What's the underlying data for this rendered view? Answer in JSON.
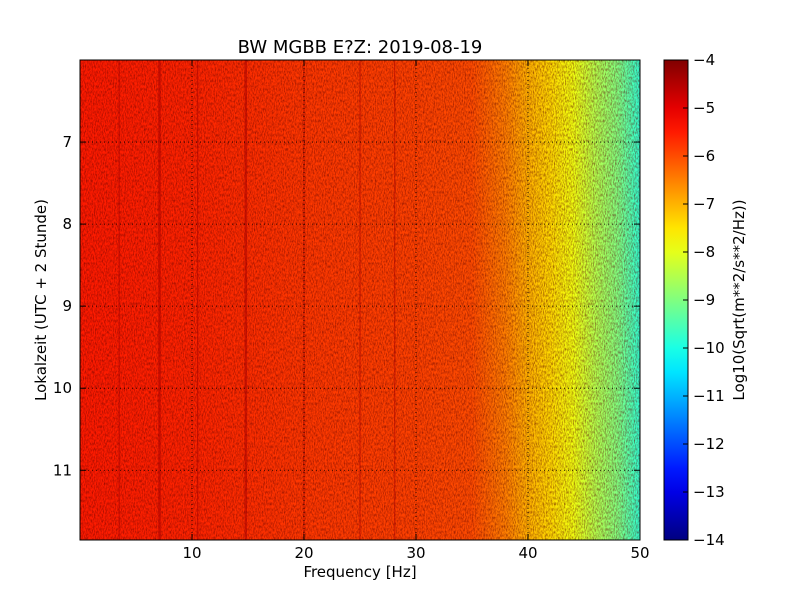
{
  "chart_data": {
    "type": "heatmap",
    "title": "BW MGBB E?Z: 2019-08-19",
    "xlabel": "Frequency [Hz]",
    "ylabel": "Lokalzeit (UTC + 2 Stunde)",
    "xlim": [
      0,
      50
    ],
    "ylim": [
      11.85,
      6.0
    ],
    "x_ticks": [
      10,
      20,
      30,
      40,
      50
    ],
    "x_tick_labels": [
      "10",
      "20",
      "30",
      "40",
      "50"
    ],
    "y_ticks": [
      7,
      8,
      9,
      10,
      11
    ],
    "y_tick_labels": [
      "7",
      "8",
      "9",
      "10",
      "11"
    ],
    "grid": true,
    "colorbar": {
      "label": "Log10(Sqrt(m**2/s**2/Hz))",
      "range": [
        -14,
        -4
      ],
      "ticks": [
        -4,
        -5,
        -6,
        -7,
        -8,
        -9,
        -10,
        -11,
        -12,
        -13,
        -14
      ],
      "tick_labels": [
        "−4",
        "−5",
        "−6",
        "−7",
        "−8",
        "−9",
        "−10",
        "−11",
        "−12",
        "−13",
        "−14"
      ],
      "colormap": "jet"
    },
    "base_level_profile": [
      {
        "freq": 0,
        "level": -5.5
      },
      {
        "freq": 10,
        "level": -5.6
      },
      {
        "freq": 20,
        "level": -5.8
      },
      {
        "freq": 30,
        "level": -5.9
      },
      {
        "freq": 35,
        "level": -6.0
      },
      {
        "freq": 38,
        "level": -6.5
      },
      {
        "freq": 40,
        "level": -7.0
      },
      {
        "freq": 42,
        "level": -7.4
      },
      {
        "freq": 44,
        "level": -7.9
      },
      {
        "freq": 46,
        "level": -8.5
      },
      {
        "freq": 48,
        "level": -9.0
      },
      {
        "freq": 50,
        "level": -9.8
      }
    ],
    "spectral_lines_hz": [
      3.5,
      7.1,
      10.5,
      14.8,
      20.0,
      25.0,
      28.1
    ],
    "colors": {
      "frame": "#000000",
      "grid": "#000000"
    }
  }
}
